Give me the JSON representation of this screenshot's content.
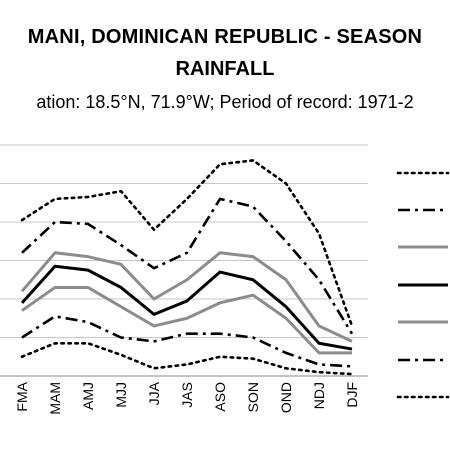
{
  "header": {
    "title_line1": "MANI, DOMINICAN REPUBLIC - SEASON",
    "title_line2": "RAINFALL",
    "subtitle": "ation: 18.5°N, 71.9°W; Period of record: 1971-2"
  },
  "chart_data": {
    "type": "line",
    "x": [
      "FMA",
      "MAM",
      "AMJ",
      "MJJ",
      "JJA",
      "JAS",
      "ASO",
      "SON",
      "OND",
      "NDJ",
      "DJF"
    ],
    "ylim": [
      0,
      6
    ],
    "grid": true,
    "legend": "right",
    "series": [
      {
        "values": [
          4.05,
          4.6,
          4.65,
          4.8,
          3.8,
          4.6,
          5.5,
          5.6,
          5.0,
          3.7,
          1.3
        ],
        "color": "#000000",
        "style": "dotted"
      },
      {
        "values": [
          3.2,
          4.0,
          3.95,
          3.4,
          2.8,
          3.2,
          4.6,
          4.4,
          3.5,
          2.5,
          1.1
        ],
        "color": "#000000",
        "style": "dashdot"
      },
      {
        "values": [
          2.2,
          3.2,
          3.1,
          2.9,
          2.0,
          2.5,
          3.2,
          3.1,
          2.5,
          1.3,
          0.9
        ],
        "color": "#8c8c8c",
        "style": "solid"
      },
      {
        "values": [
          1.9,
          2.85,
          2.75,
          2.3,
          1.6,
          1.95,
          2.7,
          2.5,
          1.8,
          0.85,
          0.7
        ],
        "color": "#000000",
        "style": "solid"
      },
      {
        "values": [
          1.7,
          2.3,
          2.3,
          1.8,
          1.3,
          1.5,
          1.9,
          2.1,
          1.5,
          0.6,
          0.6
        ],
        "color": "#8c8c8c",
        "style": "solid"
      },
      {
        "values": [
          1.0,
          1.55,
          1.4,
          1.0,
          0.9,
          1.1,
          1.1,
          1.0,
          0.6,
          0.3,
          0.25
        ],
        "color": "#000000",
        "style": "dashdot"
      },
      {
        "values": [
          0.5,
          0.85,
          0.85,
          0.55,
          0.2,
          0.3,
          0.5,
          0.45,
          0.2,
          0.1,
          0.05
        ],
        "color": "#000000",
        "style": "dotted"
      }
    ]
  }
}
